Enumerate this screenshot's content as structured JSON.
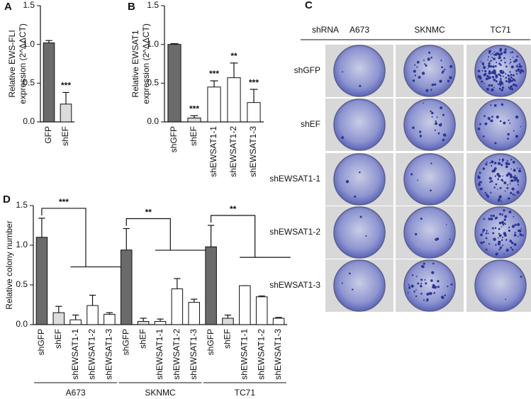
{
  "chart_data": [
    {
      "type": "bar",
      "panel": "A",
      "ylabel": [
        "Relative EWS-FLI",
        "expression (2^ΔΔCT)"
      ],
      "categories": [
        "GFP",
        "shEF"
      ],
      "values": [
        1.02,
        0.23
      ],
      "errors": [
        0.03,
        0.15
      ],
      "colors": [
        "#6b6b6b",
        "#dcdcdc"
      ],
      "ylim": [
        0,
        1.5
      ],
      "yticks": [
        {
          "value": 0,
          "label": "0.0"
        },
        0.5,
        {
          "value": 1,
          "label": "1.0"
        },
        1.5
      ],
      "annotations": [
        {
          "category": "shEF",
          "text": "***"
        }
      ]
    },
    {
      "type": "bar",
      "panel": "B",
      "ylabel": [
        "Relative EWSAT1",
        "expression (2^ΔΔCT)"
      ],
      "categories": [
        "shGFP",
        "shEF",
        "shEWSAT1-1",
        "shEWSAT1-2",
        "shEWSAT1-3"
      ],
      "values": [
        1.0,
        0.05,
        0.45,
        0.57,
        0.25
      ],
      "errors": [
        0.01,
        0.03,
        0.08,
        0.19,
        0.17
      ],
      "colors": [
        "#6b6b6b",
        "#dcdcdc",
        "#ffffff",
        "#ffffff",
        "#ffffff"
      ],
      "ylim": [
        0,
        1.5
      ],
      "yticks": [
        {
          "value": 0,
          "label": "0.0"
        },
        0.5,
        {
          "value": 1,
          "label": "1.0"
        },
        1.5
      ],
      "annotations": [
        {
          "category": "shEF",
          "text": "***"
        },
        {
          "category": "shEWSAT1-1",
          "text": "***"
        },
        {
          "category": "shEWSAT1-2",
          "text": "**"
        },
        {
          "category": "shEWSAT1-3",
          "text": "***"
        }
      ]
    },
    {
      "type": "grouped_bar",
      "panel": "D",
      "ylabel": [
        "Relative colony number"
      ],
      "groups": [
        "A673",
        "SKNMC",
        "TC71"
      ],
      "categories": [
        "shGFP",
        "shEF",
        "shEWSAT1-1",
        "shEWSAT1-2",
        "shEWSAT1-3",
        "shGFP",
        "shEF",
        "shEWSAT1-1",
        "shEWSAT1-2",
        "shEWSAT1-3",
        "shGFP",
        "shEF",
        "shEWSAT1-1",
        "shEWSAT1-2",
        "shEWSAT1-3"
      ],
      "values": [
        1.1,
        0.15,
        0.06,
        0.24,
        0.13,
        0.94,
        0.04,
        0.04,
        0.45,
        0.28,
        0.98,
        0.08,
        0.49,
        0.35,
        0.08
      ],
      "errors": [
        0.24,
        0.08,
        0.06,
        0.13,
        0.02,
        0.27,
        0.04,
        0.03,
        0.13,
        0.04,
        0.27,
        0.04,
        0.0,
        0.01,
        0.01
      ],
      "colors": [
        "#6b6b6b",
        "#dcdcdc",
        "#ffffff",
        "#ffffff",
        "#ffffff",
        "#6b6b6b",
        "#dcdcdc",
        "#ffffff",
        "#ffffff",
        "#ffffff",
        "#6b6b6b",
        "#dcdcdc",
        "#ffffff",
        "#ffffff",
        "#ffffff"
      ],
      "ylim": [
        0,
        1.5
      ],
      "yticks": [
        {
          "value": 0,
          "label": "0.0"
        },
        0.5,
        {
          "value": 1,
          "label": "1.0"
        },
        1.5
      ],
      "group_annotations": [
        "***",
        "**",
        "**"
      ]
    }
  ],
  "image_grid": {
    "panel": "C",
    "header": "shRNA",
    "columns": [
      "A673",
      "SKNMC",
      "TC71"
    ],
    "rows": [
      "shGFP",
      "shEF",
      "shEWSAT1-1",
      "shEWSAT1-2",
      "shEWSAT1-3"
    ]
  }
}
